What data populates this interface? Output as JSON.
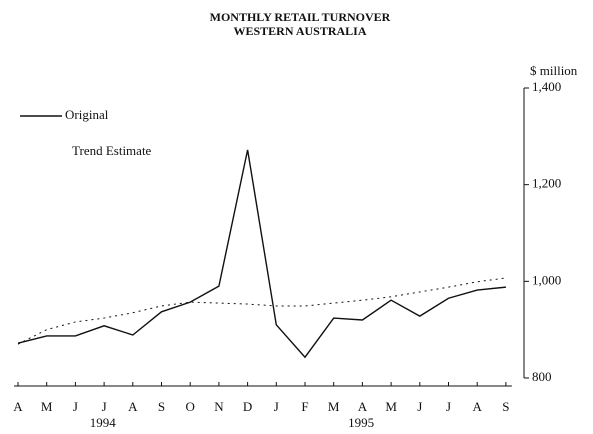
{
  "chart_data": {
    "type": "line",
    "title": "MONTHLY RETAIL TURNOVER",
    "subtitle": "WESTERN AUSTRALIA",
    "y_axis_label": "$ million",
    "categories": [
      "A",
      "M",
      "J",
      "J",
      "A",
      "S",
      "O",
      "N",
      "D",
      "J",
      "F",
      "M",
      "A",
      "M",
      "J",
      "J",
      "A",
      "S"
    ],
    "x_groups": [
      {
        "label": "1994",
        "start": 0,
        "end": 8
      },
      {
        "label": "1995",
        "start": 9,
        "end": 17
      }
    ],
    "series": [
      {
        "name": "Original",
        "color": "#111111",
        "style": "solid",
        "values": [
          872,
          887,
          887,
          908,
          889,
          937,
          957,
          990,
          1272,
          910,
          843,
          924,
          920,
          961,
          928,
          965,
          982,
          988
        ]
      },
      {
        "name": "Trend Estimate",
        "color": "#111111",
        "style": "dotted",
        "values": [
          870,
          900,
          916,
          924,
          935,
          949,
          957,
          955,
          953,
          949,
          949,
          955,
          961,
          968,
          978,
          988,
          999,
          1007
        ]
      }
    ],
    "ylim": [
      800,
      1400
    ],
    "yticks": [
      800,
      {
        "value": 1000,
        "label": "1,000"
      },
      {
        "value": 1200,
        "label": "1,200"
      },
      {
        "value": 1400,
        "label": "1,400"
      }
    ],
    "y_axis_side": "right"
  }
}
